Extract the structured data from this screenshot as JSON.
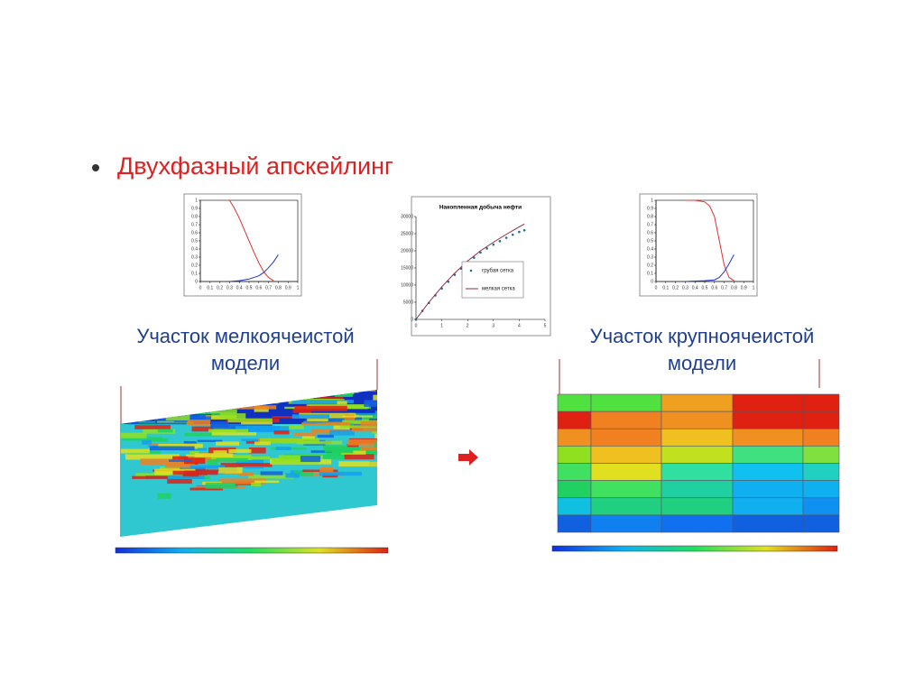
{
  "title": "Двухфазный апскейлинг",
  "captions": [
    [
      "Участок мелкоячеистой",
      "модели"
    ],
    [
      "Участок крупноячеистой",
      "модели"
    ]
  ],
  "chart_data": [
    {
      "type": "line",
      "xlim": [
        0,
        1
      ],
      "ylim": [
        0,
        1
      ],
      "xticks": [
        0,
        0.1,
        0.2,
        0.3,
        0.4,
        0.5,
        0.6,
        0.7,
        0.8,
        0.9,
        1
      ],
      "yticks": [
        0,
        0.1,
        0.2,
        0.3,
        0.4,
        0.5,
        0.6,
        0.7,
        0.8,
        0.9,
        1
      ],
      "series": [
        {
          "color": "#e03030",
          "x": [
            0.3,
            0.35,
            0.4,
            0.45,
            0.5,
            0.55,
            0.6,
            0.65,
            0.7,
            0.75
          ],
          "values": [
            1,
            0.9,
            0.78,
            0.64,
            0.5,
            0.36,
            0.23,
            0.12,
            0.05,
            0.01
          ]
        },
        {
          "color": "#2030d0",
          "x": [
            0.3,
            0.4,
            0.5,
            0.6,
            0.65,
            0.7,
            0.75,
            0.8
          ],
          "values": [
            0,
            0.01,
            0.03,
            0.07,
            0.11,
            0.17,
            0.24,
            0.33
          ]
        }
      ]
    },
    {
      "type": "line",
      "title": "Накопленная добыча нефти",
      "xlim": [
        0,
        5
      ],
      "ylim": [
        0,
        30000
      ],
      "xticks": [
        0,
        1,
        2,
        3,
        4,
        5
      ],
      "yticks": [
        0,
        5000,
        10000,
        15000,
        20000,
        25000,
        30000
      ],
      "series": [
        {
          "name": "грубая сетка",
          "style": "dots",
          "color": "#1f6f8f",
          "x": [
            0,
            0.25,
            0.5,
            0.75,
            1,
            1.25,
            1.5,
            1.75,
            2,
            2.25,
            2.5,
            2.75,
            3,
            3.25,
            3.5,
            3.75,
            4,
            4.2
          ],
          "values": [
            0,
            2500,
            4800,
            7000,
            9000,
            11000,
            13000,
            14800,
            16500,
            18000,
            19500,
            20700,
            21800,
            22800,
            23800,
            24700,
            25500,
            26000
          ]
        },
        {
          "name": "мелкая сетка",
          "style": "line",
          "color": "#8b2b40",
          "x": [
            0,
            0.5,
            1,
            1.5,
            2,
            2.5,
            3,
            3.5,
            4,
            4.2
          ],
          "values": [
            0,
            5000,
            9500,
            13500,
            17000,
            20000,
            22500,
            24800,
            27000,
            27800
          ]
        }
      ]
    },
    {
      "type": "line",
      "xlim": [
        0,
        1
      ],
      "ylim": [
        0,
        1
      ],
      "xticks": [
        0,
        0.1,
        0.2,
        0.3,
        0.4,
        0.5,
        0.6,
        0.7,
        0.8,
        0.9,
        1
      ],
      "yticks": [
        0,
        0.1,
        0.2,
        0.3,
        0.4,
        0.5,
        0.6,
        0.7,
        0.8,
        0.9,
        1
      ],
      "series": [
        {
          "color": "#e03030",
          "x": [
            0.3,
            0.4,
            0.5,
            0.55,
            0.6,
            0.65,
            0.7,
            0.75,
            0.8
          ],
          "values": [
            1,
            1,
            0.98,
            0.93,
            0.8,
            0.5,
            0.2,
            0.05,
            0.01
          ]
        },
        {
          "color": "#2030d0",
          "x": [
            0.3,
            0.5,
            0.6,
            0.65,
            0.7,
            0.75,
            0.8
          ],
          "values": [
            0,
            0.01,
            0.02,
            0.05,
            0.12,
            0.22,
            0.33
          ]
        }
      ]
    }
  ]
}
